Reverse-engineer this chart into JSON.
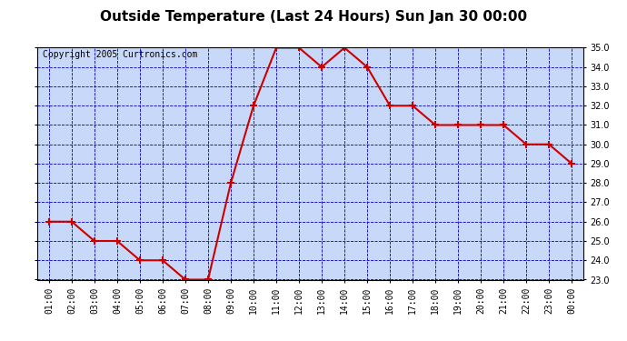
{
  "title": "Outside Temperature (Last 24 Hours) Sun Jan 30 00:00",
  "copyright_text": "Copyright 2005 Curtronics.com",
  "x_labels": [
    "01:00",
    "02:00",
    "03:00",
    "04:00",
    "05:00",
    "06:00",
    "07:00",
    "08:00",
    "09:00",
    "10:00",
    "11:00",
    "12:00",
    "13:00",
    "14:00",
    "15:00",
    "16:00",
    "17:00",
    "18:00",
    "19:00",
    "20:00",
    "21:00",
    "22:00",
    "23:00",
    "00:00"
  ],
  "y_values": [
    26.0,
    26.0,
    25.0,
    25.0,
    24.0,
    24.0,
    23.0,
    23.0,
    28.0,
    32.0,
    35.0,
    35.0,
    34.0,
    35.0,
    34.0,
    32.0,
    32.0,
    31.0,
    31.0,
    31.0,
    31.0,
    30.0,
    30.0,
    29.0
  ],
  "line_color": "#cc0000",
  "marker": "+",
  "marker_size": 6,
  "line_width": 1.5,
  "bg_color": "#c8d8f8",
  "grid_color": "#0000bb",
  "border_color": "#000000",
  "title_fontsize": 11,
  "copyright_fontsize": 7,
  "tick_label_fontsize": 7,
  "ylim": [
    23.0,
    35.0
  ],
  "yticks": [
    23.0,
    24.0,
    25.0,
    26.0,
    27.0,
    28.0,
    29.0,
    30.0,
    31.0,
    32.0,
    33.0,
    34.0,
    35.0
  ]
}
